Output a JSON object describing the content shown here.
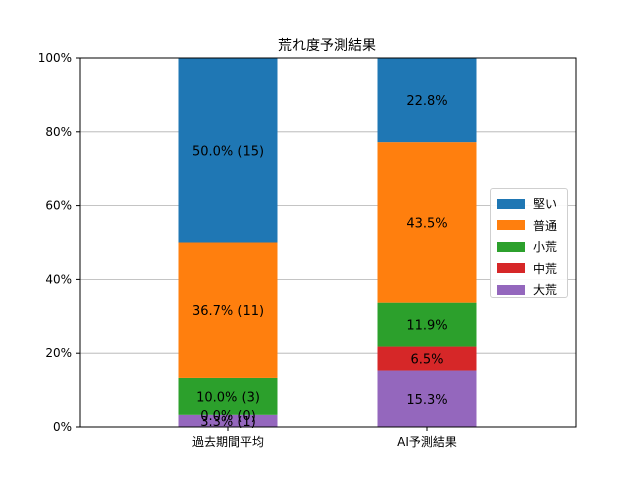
{
  "chart_data": {
    "type": "bar",
    "stacked": true,
    "title": "荒れ度予測結果",
    "categories": [
      "過去期間平均",
      "AI予測結果"
    ],
    "ylim": [
      0,
      100
    ],
    "yticks": [
      "0%",
      "20%",
      "40%",
      "60%",
      "80%",
      "100%"
    ],
    "grid": true,
    "legend_placement": "center-right",
    "series": [
      {
        "name": "大荒",
        "color": "#9467bd",
        "values": [
          3.3,
          15.3
        ],
        "labels": [
          "3.3% (1)",
          "15.3%"
        ]
      },
      {
        "name": "中荒",
        "color": "#d62728",
        "values": [
          0.0,
          6.5
        ],
        "labels": [
          "0.0% (0)",
          "6.5%"
        ]
      },
      {
        "name": "小荒",
        "color": "#2ca02c",
        "values": [
          10.0,
          11.9
        ],
        "labels": [
          "10.0% (3)",
          "11.9%"
        ]
      },
      {
        "name": "普通",
        "color": "#ff7f0e",
        "values": [
          36.7,
          43.5
        ],
        "labels": [
          "36.7% (11)",
          "43.5%"
        ]
      },
      {
        "name": "堅い",
        "color": "#1f77b4",
        "values": [
          50.0,
          22.8
        ],
        "labels": [
          "50.0% (15)",
          "22.8%"
        ]
      }
    ],
    "legend_order": [
      "堅い",
      "普通",
      "小荒",
      "中荒",
      "大荒"
    ]
  }
}
